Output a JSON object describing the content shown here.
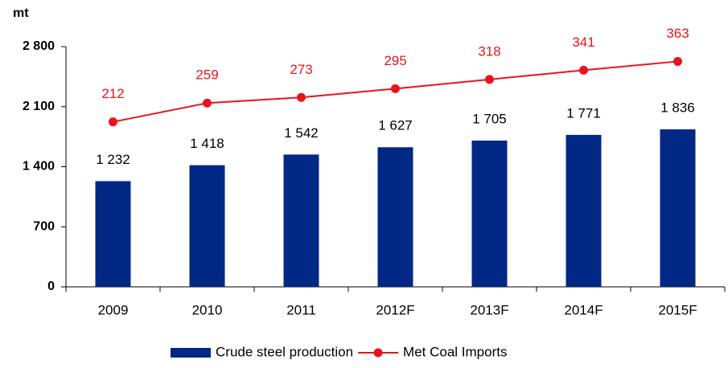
{
  "chart_data": {
    "type": "bar",
    "y_label": "mt",
    "categories": [
      "2009",
      "2010",
      "2011",
      "2012F",
      "2013F",
      "2014F",
      "2015F"
    ],
    "series": [
      {
        "name": "Crude steel production",
        "type": "bar",
        "color": "#002884",
        "values": [
          1232,
          1418,
          1542,
          1627,
          1705,
          1771,
          1836
        ],
        "value_labels": [
          "1 232",
          "1 418",
          "1 542",
          "1 627",
          "1 705",
          "1 771",
          "1 836"
        ]
      },
      {
        "name": "Met Coal Imports",
        "type": "line",
        "color": "#e8141c",
        "axis": "y2",
        "values": [
          212,
          259,
          273,
          295,
          318,
          341,
          363
        ]
      }
    ],
    "ylim": [
      0,
      2800
    ],
    "yticks": [
      0,
      700,
      {
        "value": 1400,
        "label": "1 400"
      },
      {
        "value": 2100,
        "label": "2 100"
      },
      {
        "value": 2800,
        "label": "2 800"
      }
    ],
    "y2lim": [
      -200,
      400
    ],
    "legend": "bottom"
  }
}
